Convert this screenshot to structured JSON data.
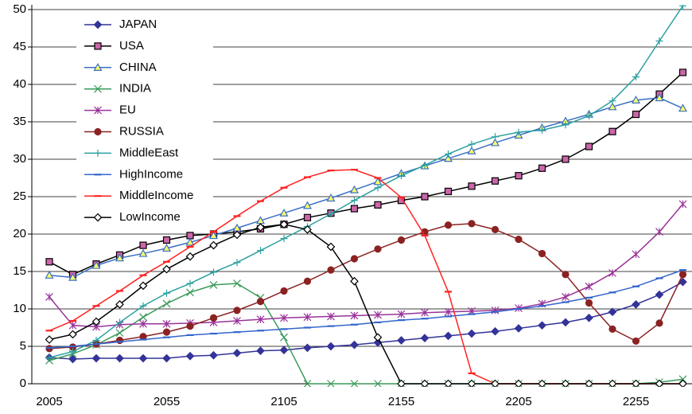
{
  "chart_data": {
    "type": "line",
    "categories": [
      "2005",
      null,
      null,
      null,
      null,
      "2055",
      null,
      null,
      null,
      null,
      "2105",
      null,
      null,
      null,
      null,
      "2155",
      null,
      null,
      null,
      null,
      "2205",
      null,
      null,
      null,
      null,
      "2255",
      null,
      null
    ],
    "ylim": [
      0,
      50
    ],
    "yticks": [
      0,
      5,
      10,
      15,
      20,
      25,
      30,
      35,
      40,
      45,
      50
    ],
    "grid": true,
    "legend": "upper-left",
    "series": [
      {
        "name": "JAPAN",
        "color": "#333399",
        "marker": "diamond",
        "marker_fill": "#333399",
        "values": [
          3.5,
          3.3,
          3.4,
          3.4,
          3.4,
          3.4,
          3.7,
          3.8,
          4.1,
          4.4,
          4.5,
          4.8,
          5.0,
          5.2,
          5.5,
          5.8,
          6.1,
          6.4,
          6.7,
          7.0,
          7.4,
          7.8,
          8.2,
          8.8,
          9.6,
          10.6,
          11.9,
          13.6
        ]
      },
      {
        "name": "USA",
        "color": "#000000",
        "marker": "square",
        "marker_fill": "#cc66aa",
        "values": [
          16.3,
          14.6,
          16.0,
          17.2,
          18.5,
          19.2,
          19.8,
          20.0,
          20.3,
          20.7,
          21.3,
          22.2,
          22.8,
          23.4,
          23.9,
          24.5,
          25.0,
          25.7,
          26.4,
          27.1,
          27.8,
          28.8,
          30.0,
          31.7,
          33.7,
          36.0,
          38.7,
          41.6
        ]
      },
      {
        "name": "CHINA",
        "color": "#3a6fc4",
        "marker": "triangle",
        "marker_fill": "#ffff66",
        "values": [
          14.5,
          14.2,
          15.8,
          16.8,
          17.4,
          18.1,
          18.9,
          19.8,
          20.8,
          21.8,
          22.8,
          23.8,
          24.8,
          25.9,
          27.0,
          28.1,
          29.1,
          30.1,
          31.1,
          32.2,
          33.2,
          34.2,
          35.1,
          36.0,
          37.0,
          37.9,
          38.2,
          36.8
        ]
      },
      {
        "name": "INDIA",
        "color": "#3a9a5a",
        "marker": "x",
        "marker_fill": "none",
        "values": [
          3.1,
          4.0,
          5.2,
          6.8,
          8.9,
          10.7,
          12.2,
          13.2,
          13.4,
          11.5,
          6.2,
          0,
          0,
          0,
          0,
          0,
          0,
          0,
          0,
          0,
          0,
          0,
          0,
          0,
          0,
          0,
          0.2,
          0.6
        ]
      },
      {
        "name": "EU",
        "color": "#993399",
        "marker": "asterisk",
        "marker_fill": "none",
        "values": [
          11.6,
          7.8,
          7.6,
          7.9,
          8.0,
          8.0,
          8.1,
          8.2,
          8.4,
          8.6,
          8.8,
          8.9,
          9.0,
          9.1,
          9.2,
          9.3,
          9.5,
          9.6,
          9.7,
          9.8,
          10.1,
          10.7,
          11.6,
          13.0,
          14.8,
          17.3,
          20.3,
          24.0
        ]
      },
      {
        "name": "RUSSIA",
        "color": "#8b2222",
        "marker": "circle",
        "marker_fill": "#8b2222",
        "values": [
          4.7,
          4.9,
          5.3,
          5.8,
          6.3,
          6.9,
          7.7,
          8.8,
          9.8,
          11.0,
          12.4,
          13.7,
          15.2,
          16.7,
          18.0,
          19.2,
          20.3,
          21.2,
          21.4,
          20.6,
          19.3,
          17.4,
          14.6,
          10.8,
          7.3,
          5.7,
          8.1,
          14.6
        ]
      },
      {
        "name": "MiddleEast",
        "color": "#2aa0a0",
        "marker": "plus",
        "marker_fill": "none",
        "values": [
          3.5,
          4.3,
          5.8,
          8.2,
          10.4,
          12.1,
          13.4,
          14.9,
          16.2,
          17.8,
          19.4,
          21.0,
          22.7,
          24.5,
          26.2,
          27.8,
          29.2,
          30.7,
          32.0,
          33.0,
          33.6,
          33.9,
          34.6,
          35.8,
          37.8,
          41.0,
          45.8,
          50.5
        ]
      },
      {
        "name": "HighIncome",
        "color": "#3366cc",
        "marker": "dash",
        "marker_fill": "none",
        "values": [
          4.8,
          5.0,
          5.3,
          5.6,
          5.9,
          6.2,
          6.5,
          6.7,
          6.9,
          7.1,
          7.3,
          7.5,
          7.7,
          7.9,
          8.2,
          8.5,
          8.7,
          9.0,
          9.3,
          9.6,
          10.0,
          10.4,
          10.9,
          11.5,
          12.2,
          13.0,
          14.1,
          15.2
        ]
      },
      {
        "name": "MiddleIncome",
        "color": "#ff2222",
        "marker": "dash",
        "marker_fill": "none",
        "values": [
          7.1,
          8.4,
          10.4,
          12.4,
          14.5,
          16.3,
          18.3,
          20.3,
          22.4,
          24.4,
          26.2,
          27.6,
          28.5,
          28.6,
          27.5,
          24.9,
          19.8,
          12.3,
          1.4,
          0,
          0,
          0,
          0,
          0,
          0,
          0,
          0,
          0
        ]
      },
      {
        "name": "LowIncome",
        "color": "#000000",
        "marker": "diamond",
        "marker_fill": "#ffffff",
        "values": [
          5.9,
          6.6,
          8.3,
          10.6,
          13.1,
          15.3,
          17.0,
          18.5,
          19.9,
          20.9,
          21.3,
          20.6,
          18.3,
          13.7,
          6.2,
          0,
          0,
          0,
          0,
          0,
          0,
          0,
          0,
          0,
          0,
          0,
          0,
          0
        ]
      }
    ]
  }
}
